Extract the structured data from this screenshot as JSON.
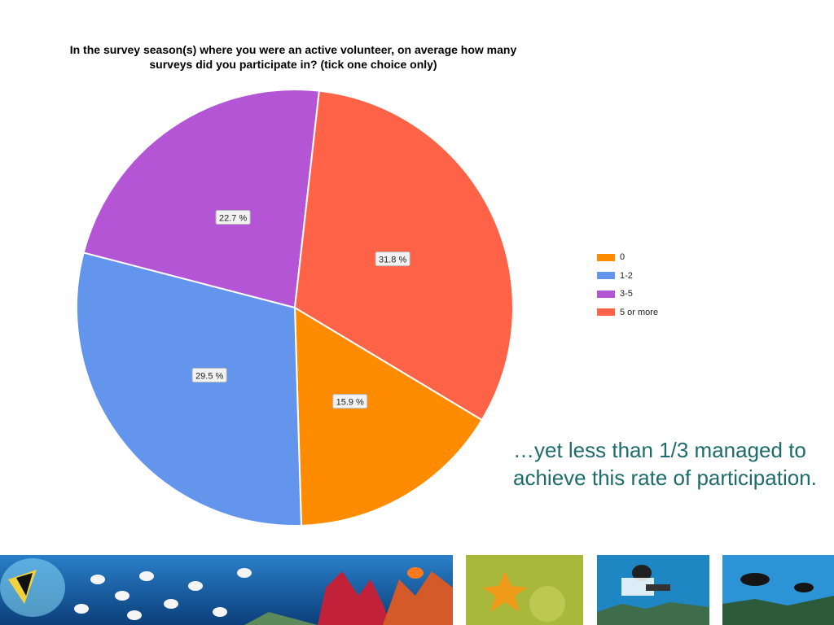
{
  "slide": {
    "caption": "…yet less than 1/3 managed to achieve this rate of participation."
  },
  "photos": [
    {
      "name": "reef-fish-banner-photo"
    },
    {
      "name": "starfish-photo"
    },
    {
      "name": "diver-with-slate-photo"
    },
    {
      "name": "divers-over-reef-photo"
    }
  ],
  "chart_data": {
    "type": "pie",
    "title": "In the survey season(s) where you were an active volunteer, on average how many surveys did you participate in? (tick one choice only)",
    "categories": [
      "0",
      "1-2",
      "3-5",
      "5 or more"
    ],
    "values": [
      15.9,
      29.5,
      22.7,
      31.8
    ],
    "data_labels": [
      "15.9 %",
      "29.5 %",
      "22.7 %",
      "31.8 %"
    ],
    "colors": [
      "#ff8c00",
      "#6495ed",
      "#b455d6",
      "#ff6347"
    ],
    "legend": {
      "position": "right",
      "entries": [
        "0",
        "1-2",
        "3-5",
        "5 or more"
      ]
    }
  }
}
